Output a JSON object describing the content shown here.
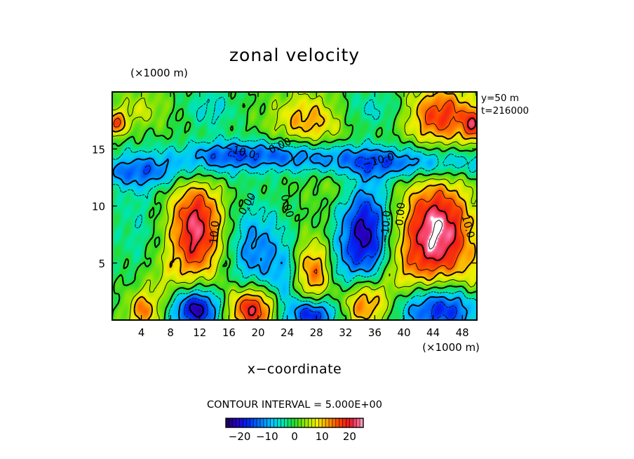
{
  "chart_data": {
    "type": "heatmap",
    "title": "zonal velocity",
    "xlabel": "x−coordinate",
    "y_unit_label": "(×1000 m)",
    "x_unit_label": "(×1000 m)",
    "info_lines": [
      "y=50 m",
      "t=216000"
    ],
    "contour_interval_text": "CONTOUR INTERVAL = 5.000E+00",
    "xlim": [
      0,
      50
    ],
    "ylim": [
      0,
      20
    ],
    "x_ticks": [
      4,
      8,
      12,
      16,
      20,
      24,
      28,
      32,
      36,
      40,
      44,
      48
    ],
    "x_tick_labels": [
      "4",
      "8",
      "12",
      "16",
      "20",
      "24",
      "28",
      "32",
      "36",
      "40",
      "44",
      "48"
    ],
    "y_ticks": [
      5,
      10,
      15
    ],
    "y_tick_labels": [
      "5",
      "10",
      "15"
    ],
    "value_range": [
      -25,
      25
    ],
    "colorbar_ticks": [
      -20,
      -10,
      0,
      10,
      20
    ],
    "colorbar_tick_labels": [
      "−20",
      "−10",
      "0",
      "10",
      "20"
    ],
    "contour_labels": [
      {
        "text": "−10.0",
        "x": 17.5,
        "y": 14.8,
        "angle": 15
      },
      {
        "text": "0.00",
        "x": 23.0,
        "y": 15.3,
        "angle": -25
      },
      {
        "text": "−10.0",
        "x": 36.5,
        "y": 14.0,
        "angle": -15
      },
      {
        "text": "0.00",
        "x": 18.5,
        "y": 10.2,
        "angle": -60
      },
      {
        "text": "0.00",
        "x": 24.0,
        "y": 10.0,
        "angle": 75
      },
      {
        "text": "10.0",
        "x": 14.0,
        "y": 7.7,
        "angle": -85
      },
      {
        "text": "0.00",
        "x": 39.5,
        "y": 9.3,
        "angle": -85
      },
      {
        "text": "−10.0",
        "x": 37.5,
        "y": 8.2,
        "angle": -85
      },
      {
        "text": "10.0",
        "x": 48.8,
        "y": 8.2,
        "angle": 75
      }
    ],
    "features": [
      {
        "x": 11.5,
        "y": 8.0,
        "sx": 2.6,
        "sy": 3.2,
        "a": 22
      },
      {
        "x": 44.5,
        "y": 7.7,
        "sx": 3.5,
        "sy": 3.3,
        "a": 25
      },
      {
        "x": 27.5,
        "y": 4.2,
        "sx": 1.8,
        "sy": 2.0,
        "a": 14
      },
      {
        "x": 19.5,
        "y": 6.0,
        "sx": 2.5,
        "sy": 2.8,
        "a": -12
      },
      {
        "x": 34.8,
        "y": 7.5,
        "sx": 2.2,
        "sy": 3.3,
        "a": -22
      },
      {
        "x": 3.5,
        "y": 8.5,
        "sx": 2.3,
        "sy": 4.0,
        "a": -4
      },
      {
        "x": 11.5,
        "y": 1.0,
        "sx": 2.4,
        "sy": 1.3,
        "a": -24
      },
      {
        "x": 19.2,
        "y": 1.0,
        "sx": 2.5,
        "sy": 1.4,
        "a": 22
      },
      {
        "x": 27.5,
        "y": 0.5,
        "sx": 2.2,
        "sy": 1.0,
        "a": -20
      },
      {
        "x": 34.7,
        "y": 1.5,
        "sx": 2.6,
        "sy": 1.6,
        "a": 18
      },
      {
        "x": 45.0,
        "y": 1.0,
        "sx": 4.5,
        "sy": 1.5,
        "a": -20
      },
      {
        "x": 4.2,
        "y": 0.8,
        "sx": 1.5,
        "sy": 1.2,
        "a": 13
      },
      {
        "x": 0.5,
        "y": 17.2,
        "sx": 1.2,
        "sy": 0.8,
        "a": 14
      },
      {
        "x": 49.8,
        "y": 17.0,
        "sx": 1.2,
        "sy": 1.0,
        "a": 14
      },
      {
        "x": 45.0,
        "y": 18.0,
        "sx": 3.5,
        "sy": 1.8,
        "a": 18
      },
      {
        "x": 27.0,
        "y": 17.5,
        "sx": 3.5,
        "sy": 1.7,
        "a": 12
      },
      {
        "x": 4.0,
        "y": 18.5,
        "sx": 2.5,
        "sy": 1.2,
        "a": 6
      },
      {
        "x": 20.0,
        "y": 14.5,
        "sx": 8.0,
        "sy": 0.9,
        "a": -13
      },
      {
        "x": 40.0,
        "y": 13.8,
        "sx": 9.0,
        "sy": 1.0,
        "a": -14
      },
      {
        "x": 4.0,
        "y": 13.0,
        "sx": 5.5,
        "sy": 1.0,
        "a": -12
      },
      {
        "x": 13.5,
        "y": 18.5,
        "sx": 2.5,
        "sy": 1.3,
        "a": -6
      },
      {
        "x": 14.0,
        "y": 14.0,
        "sx": 3.0,
        "sy": 1.2,
        "a": -5
      },
      {
        "x": 31.0,
        "y": 12.0,
        "sx": 3.0,
        "sy": 1.2,
        "a": 4
      },
      {
        "x": 36.0,
        "y": 18.5,
        "sx": 4.0,
        "sy": 1.2,
        "a": -6
      },
      {
        "x": 23.5,
        "y": 3.0,
        "sx": 1.5,
        "sy": 3.0,
        "a": -8
      },
      {
        "x": 31.5,
        "y": 4.5,
        "sx": 1.3,
        "sy": 3.0,
        "a": -6
      },
      {
        "x": 7.0,
        "y": 3.0,
        "sx": 2.5,
        "sy": 2.0,
        "a": 5
      },
      {
        "x": 40.0,
        "y": 4.0,
        "sx": 2.5,
        "sy": 2.0,
        "a": 5
      },
      {
        "x": 49.5,
        "y": 3.0,
        "sx": 1.5,
        "sy": 2.0,
        "a": 5
      }
    ]
  }
}
